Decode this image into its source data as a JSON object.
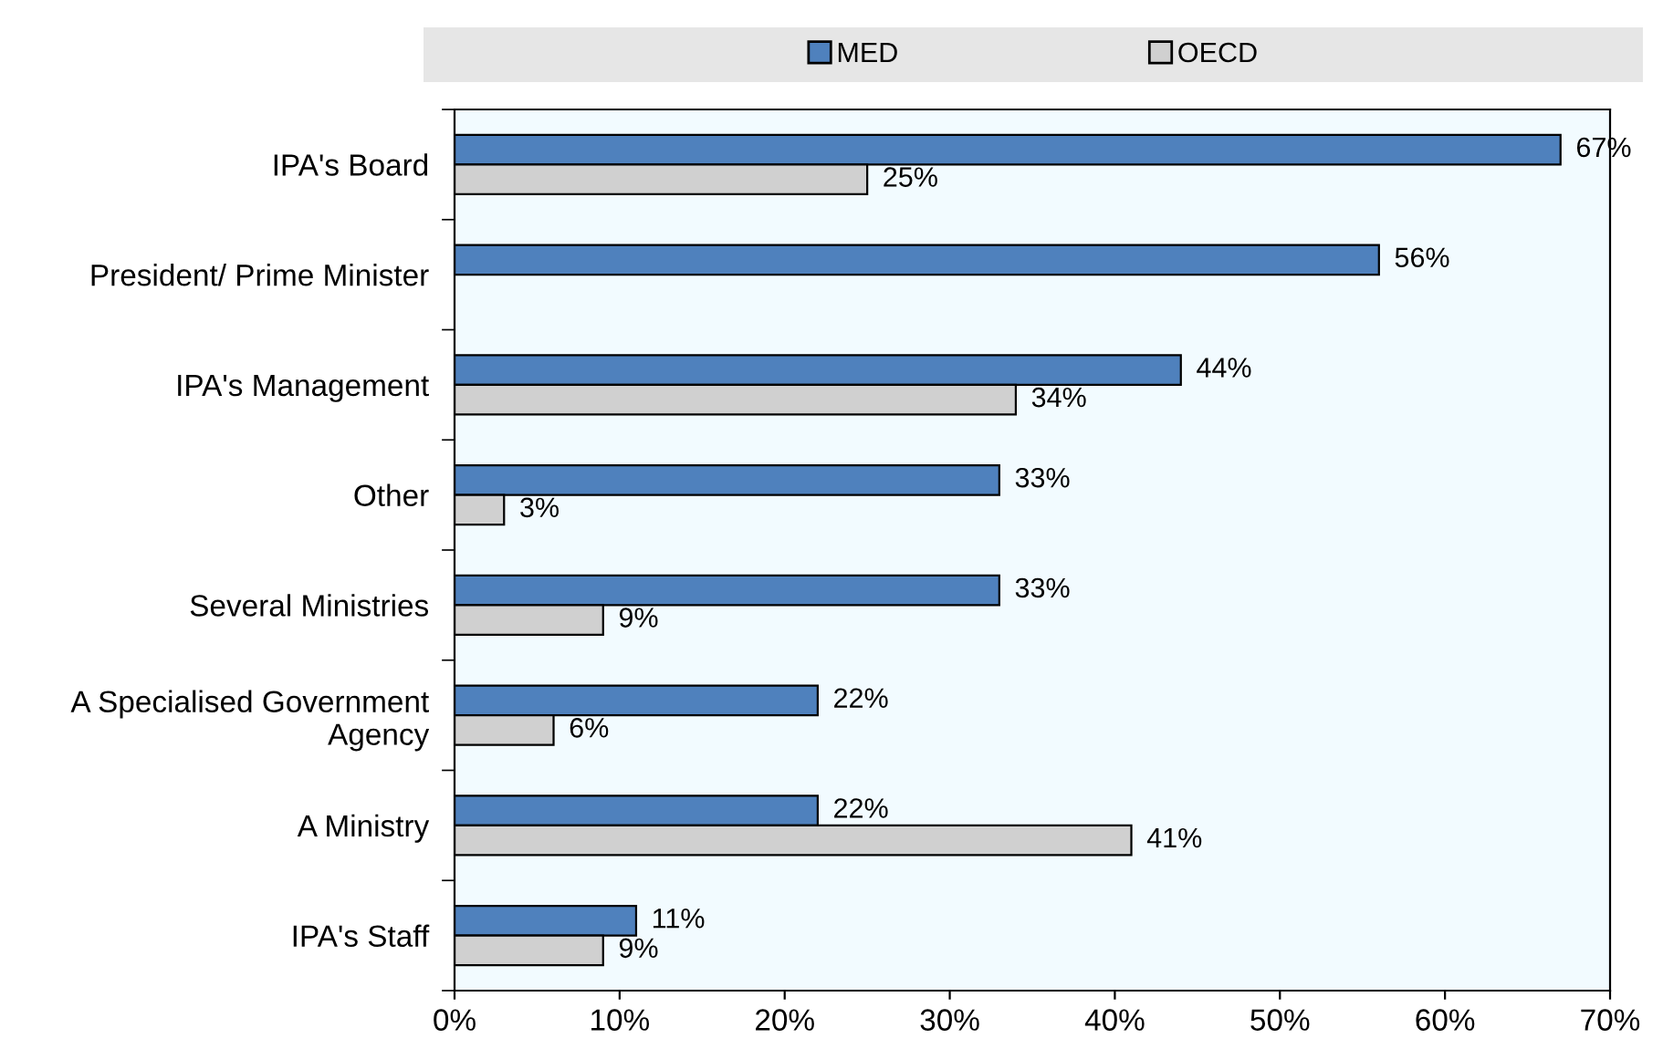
{
  "chart_data": {
    "type": "bar",
    "orientation": "horizontal",
    "categories": [
      "IPA's Board",
      "President/ Prime Minister",
      "IPA's Management",
      "Other",
      "Several Ministries",
      "A Specialised Government Agency",
      "A Ministry",
      "IPA's Staff"
    ],
    "series": [
      {
        "name": "MED",
        "color": "#4f81bd",
        "values": [
          67,
          56,
          44,
          33,
          33,
          22,
          22,
          11
        ],
        "value_labels": [
          "67%",
          "56%",
          "44%",
          "33%",
          "33%",
          "22%",
          "22%",
          "11%"
        ]
      },
      {
        "name": "OECD",
        "color": "#d0d0d0",
        "values": [
          25,
          null,
          34,
          3,
          9,
          6,
          41,
          9
        ],
        "value_labels": [
          "25%",
          null,
          "34%",
          "3%",
          "9%",
          "6%",
          "41%",
          "9%"
        ]
      }
    ],
    "xlim": [
      0,
      70
    ],
    "xticks": [
      {
        "value": 0,
        "label": "0%"
      },
      {
        "value": 10,
        "label": "10%"
      },
      {
        "value": 20,
        "label": "20%"
      },
      {
        "value": 30,
        "label": "30%"
      },
      {
        "value": 40,
        "label": "40%"
      },
      {
        "value": 50,
        "label": "50%"
      },
      {
        "value": 60,
        "label": "60%"
      },
      {
        "value": 70,
        "label": "70%"
      }
    ],
    "legend": "top",
    "grid": false
  }
}
